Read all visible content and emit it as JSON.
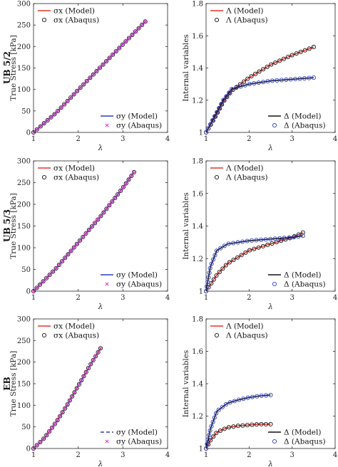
{
  "chart_data": [
    {
      "type": "line",
      "row_label": "UB 5/2",
      "xlabel": "λ",
      "ylabel": "True Stress [kPa]",
      "xlim": [
        1,
        4
      ],
      "ylim": [
        0,
        300
      ],
      "xticks": [
        1,
        2,
        3,
        4
      ],
      "yticks": [
        0,
        50,
        100,
        150,
        200,
        250,
        300
      ],
      "legends": [
        {
          "placement": "top-left",
          "entries": [
            {
              "label": "σx (Model)",
              "series": 0
            },
            {
              "label": "σx (Abaqus)",
              "series": 1
            }
          ]
        },
        {
          "placement": "bottom-right",
          "entries": [
            {
              "label": "σy (Model)",
              "series": 2
            },
            {
              "label": "σy (Abaqus)",
              "series": 3
            }
          ]
        }
      ],
      "series": [
        {
          "name": "σx (Model)",
          "style": "line",
          "color": "#e8332a",
          "x": [
            1.0,
            1.5,
            2.0,
            2.5,
            3.0,
            3.5
          ],
          "y": [
            0,
            45,
            99,
            152,
            205,
            258
          ]
        },
        {
          "name": "σx (Abaqus)",
          "style": "circle",
          "color": "#111111",
          "x": [
            1.0,
            1.5,
            2.0,
            2.5,
            3.0,
            3.5
          ],
          "y": [
            0,
            45,
            99,
            152,
            205,
            258
          ]
        },
        {
          "name": "σy (Model)",
          "style": "line",
          "color": "#2d3ec4",
          "x": [
            1.0,
            1.5,
            2.0,
            2.5,
            3.0,
            3.5
          ],
          "y": [
            0,
            45,
            99,
            152,
            205,
            258
          ]
        },
        {
          "name": "σy (Abaqus)",
          "style": "x",
          "color": "#d62dbd",
          "x": [
            1.0,
            1.5,
            2.0,
            2.5,
            3.0,
            3.5
          ],
          "y": [
            0,
            45,
            99,
            152,
            205,
            258
          ]
        }
      ]
    },
    {
      "type": "line",
      "xlabel": "λ",
      "ylabel": "Internal variables",
      "xlim": [
        1,
        4
      ],
      "ylim": [
        1,
        1.8
      ],
      "xticks": [
        1,
        2,
        3,
        4
      ],
      "yticks": [
        1,
        1.2,
        1.4,
        1.6,
        1.8
      ],
      "legends": [
        {
          "placement": "top-left",
          "entries": [
            {
              "label": "Λ (Model)",
              "series": 0
            },
            {
              "label": "Λ (Abaqus)",
              "series": 1
            }
          ]
        },
        {
          "placement": "bottom-right",
          "entries": [
            {
              "label": "Δ (Model)",
              "series": 2
            },
            {
              "label": "Δ (Abaqus)",
              "series": 3
            }
          ]
        }
      ],
      "series": [
        {
          "name": "Λ (Model)",
          "style": "line",
          "color": "#e8332a",
          "x": [
            1.0,
            1.2,
            1.4,
            1.6,
            2.0,
            2.5,
            3.0,
            3.5
          ],
          "y": [
            1.0,
            1.09,
            1.19,
            1.26,
            1.34,
            1.42,
            1.48,
            1.53
          ]
        },
        {
          "name": "Λ (Abaqus)",
          "style": "circle",
          "color": "#111111",
          "x": [
            1.0,
            1.2,
            1.4,
            1.6,
            2.0,
            2.5,
            3.0,
            3.5
          ],
          "y": [
            1.0,
            1.09,
            1.19,
            1.26,
            1.34,
            1.42,
            1.48,
            1.53
          ]
        },
        {
          "name": "Δ (Model)",
          "style": "line",
          "color": "#111111",
          "x": [
            1.0,
            1.2,
            1.4,
            1.6,
            2.0,
            2.5,
            3.0,
            3.5
          ],
          "y": [
            1.0,
            1.1,
            1.2,
            1.27,
            1.3,
            1.32,
            1.33,
            1.34
          ]
        },
        {
          "name": "Δ (Abaqus)",
          "style": "circle",
          "color": "#2d3ec4",
          "x": [
            1.0,
            1.2,
            1.4,
            1.6,
            2.0,
            2.5,
            3.0,
            3.5
          ],
          "y": [
            1.0,
            1.1,
            1.2,
            1.27,
            1.3,
            1.32,
            1.33,
            1.34
          ]
        }
      ]
    },
    {
      "type": "line",
      "row_label": "UB 5/3",
      "xlabel": "λ",
      "ylabel": "True Stress [kPa]",
      "xlim": [
        1,
        4
      ],
      "ylim": [
        0,
        300
      ],
      "xticks": [
        1,
        2,
        3,
        4
      ],
      "yticks": [
        0,
        50,
        100,
        150,
        200,
        250,
        300
      ],
      "legends": [
        {
          "placement": "top-left",
          "entries": [
            {
              "label": "σx (Model)",
              "series": 0
            },
            {
              "label": "σx (Abaqus)",
              "series": 1
            }
          ]
        },
        {
          "placement": "bottom-right",
          "entries": [
            {
              "label": "σy (Model)",
              "series": 2
            },
            {
              "label": "σy (Abaqus)",
              "series": 3
            }
          ]
        }
      ],
      "series": [
        {
          "name": "σx (Model)",
          "style": "line",
          "color": "#e8332a",
          "x": [
            1.0,
            1.5,
            2.0,
            2.5,
            3.0,
            3.25
          ],
          "y": [
            0,
            52,
            112,
            172,
            238,
            274
          ]
        },
        {
          "name": "σx (Abaqus)",
          "style": "circle",
          "color": "#111111",
          "x": [
            1.0,
            1.5,
            2.0,
            2.5,
            3.0,
            3.25
          ],
          "y": [
            0,
            52,
            112,
            172,
            238,
            274
          ]
        },
        {
          "name": "σy (Model)",
          "style": "line",
          "color": "#2d3ec4",
          "x": [
            1.0,
            1.5,
            2.0,
            2.5,
            3.0,
            3.25
          ],
          "y": [
            0,
            52,
            112,
            172,
            238,
            274
          ]
        },
        {
          "name": "σy (Abaqus)",
          "style": "x",
          "color": "#d62dbd",
          "x": [
            1.0,
            1.5,
            2.0,
            2.5,
            3.0,
            3.25
          ],
          "y": [
            0,
            52,
            112,
            172,
            238,
            274
          ]
        }
      ]
    },
    {
      "type": "line",
      "xlabel": "λ",
      "ylabel": "Internal variables",
      "xlim": [
        1,
        4
      ],
      "ylim": [
        1,
        1.8
      ],
      "xticks": [
        1,
        2,
        3,
        4
      ],
      "yticks": [
        1,
        1.2,
        1.4,
        1.6,
        1.8
      ],
      "legends": [
        {
          "placement": "top-left",
          "entries": [
            {
              "label": "Λ (Model)",
              "series": 0
            },
            {
              "label": "Λ (Abaqus)",
              "series": 1
            }
          ]
        },
        {
          "placement": "bottom-right",
          "entries": [
            {
              "label": "Δ (Model)",
              "series": 2
            },
            {
              "label": "Δ (Abaqus)",
              "series": 3
            }
          ]
        }
      ],
      "series": [
        {
          "name": "Λ (Model)",
          "style": "line",
          "color": "#e8332a",
          "x": [
            1.0,
            1.25,
            1.5,
            1.75,
            2.0,
            2.5,
            3.0,
            3.25
          ],
          "y": [
            1.0,
            1.1,
            1.17,
            1.21,
            1.25,
            1.29,
            1.33,
            1.36
          ]
        },
        {
          "name": "Λ (Abaqus)",
          "style": "circle",
          "color": "#111111",
          "x": [
            1.0,
            1.25,
            1.5,
            1.75,
            2.0,
            2.5,
            3.0,
            3.25
          ],
          "y": [
            1.0,
            1.1,
            1.17,
            1.21,
            1.25,
            1.29,
            1.33,
            1.36
          ]
        },
        {
          "name": "Δ (Model)",
          "style": "line",
          "color": "#111111",
          "x": [
            1.0,
            1.1,
            1.25,
            1.5,
            2.0,
            2.5,
            3.0,
            3.25
          ],
          "y": [
            1.0,
            1.15,
            1.25,
            1.29,
            1.31,
            1.32,
            1.33,
            1.34
          ]
        },
        {
          "name": "Δ (Abaqus)",
          "style": "circle",
          "color": "#2d3ec4",
          "x": [
            1.0,
            1.1,
            1.25,
            1.5,
            2.0,
            2.5,
            3.0,
            3.25
          ],
          "y": [
            1.0,
            1.15,
            1.25,
            1.29,
            1.31,
            1.32,
            1.33,
            1.34
          ]
        }
      ]
    },
    {
      "type": "line",
      "row_label": "EB",
      "xlabel": "λ",
      "ylabel": "True Stress [kPa]",
      "xlim": [
        1,
        4
      ],
      "ylim": [
        0,
        300
      ],
      "xticks": [
        1,
        2,
        3,
        4
      ],
      "yticks": [
        0,
        50,
        100,
        150,
        200,
        250,
        300
      ],
      "legends": [
        {
          "placement": "top-left",
          "entries": [
            {
              "label": "σx (Model)",
              "series": 0
            },
            {
              "label": "σx (Abaqus)",
              "series": 1
            }
          ]
        },
        {
          "placement": "bottom-right",
          "entries": [
            {
              "label": "σy (Model)",
              "series": 2
            },
            {
              "label": "σy (Abaqus)",
              "series": 3
            }
          ]
        }
      ],
      "series": [
        {
          "name": "σx (Model)",
          "style": "line",
          "color": "#e8332a",
          "x": [
            1.0,
            1.25,
            1.5,
            1.75,
            2.0,
            2.25,
            2.5
          ],
          "y": [
            0,
            25,
            60,
            100,
            145,
            190,
            232
          ]
        },
        {
          "name": "σx (Abaqus)",
          "style": "circle",
          "color": "#111111",
          "x": [
            1.0,
            1.25,
            1.5,
            1.75,
            2.0,
            2.25,
            2.5
          ],
          "y": [
            0,
            25,
            60,
            100,
            145,
            190,
            232
          ]
        },
        {
          "name": "σy (Model)",
          "style": "dashed",
          "color": "#2d3ec4",
          "x": [
            1.0,
            1.25,
            1.5,
            1.75,
            2.0,
            2.25,
            2.5
          ],
          "y": [
            0,
            25,
            60,
            100,
            145,
            190,
            232
          ]
        },
        {
          "name": "σy (Abaqus)",
          "style": "x",
          "color": "#d62dbd",
          "x": [
            1.0,
            1.25,
            1.5,
            1.75,
            2.0,
            2.25,
            2.5
          ],
          "y": [
            0,
            25,
            60,
            100,
            145,
            190,
            232
          ]
        }
      ]
    },
    {
      "type": "line",
      "xlabel": "λ",
      "ylabel": "Internal variables",
      "xlim": [
        1,
        4
      ],
      "ylim": [
        1,
        1.8
      ],
      "xticks": [
        1,
        2,
        3,
        4
      ],
      "yticks": [
        1,
        1.2,
        1.4,
        1.6,
        1.8
      ],
      "legends": [
        {
          "placement": "top-left",
          "entries": [
            {
              "label": "Λ (Model)",
              "series": 0
            },
            {
              "label": "Λ (Abaqus)",
              "series": 1
            }
          ]
        },
        {
          "placement": "bottom-right",
          "entries": [
            {
              "label": "Δ (Model)",
              "series": 2
            },
            {
              "label": "Δ (Abaqus)",
              "series": 3
            }
          ]
        }
      ],
      "series": [
        {
          "name": "Λ (Model)",
          "style": "line",
          "color": "#e8332a",
          "x": [
            1.0,
            1.1,
            1.25,
            1.5,
            1.75,
            2.0,
            2.25,
            2.5
          ],
          "y": [
            1.0,
            1.05,
            1.1,
            1.13,
            1.14,
            1.145,
            1.15,
            1.15
          ]
        },
        {
          "name": "Λ (Abaqus)",
          "style": "circle",
          "color": "#111111",
          "x": [
            1.0,
            1.1,
            1.25,
            1.5,
            1.75,
            2.0,
            2.25,
            2.5
          ],
          "y": [
            1.0,
            1.05,
            1.1,
            1.13,
            1.14,
            1.145,
            1.15,
            1.15
          ]
        },
        {
          "name": "Δ (Model)",
          "style": "line",
          "color": "#111111",
          "x": [
            1.0,
            1.1,
            1.25,
            1.5,
            1.75,
            2.0,
            2.25,
            2.5
          ],
          "y": [
            1.0,
            1.12,
            1.23,
            1.28,
            1.3,
            1.315,
            1.325,
            1.33
          ]
        },
        {
          "name": "Δ (Abaqus)",
          "style": "circle",
          "color": "#2d3ec4",
          "x": [
            1.0,
            1.1,
            1.25,
            1.5,
            1.75,
            2.0,
            2.25,
            2.5
          ],
          "y": [
            1.0,
            1.12,
            1.23,
            1.28,
            1.3,
            1.315,
            1.325,
            1.33
          ]
        }
      ]
    }
  ]
}
